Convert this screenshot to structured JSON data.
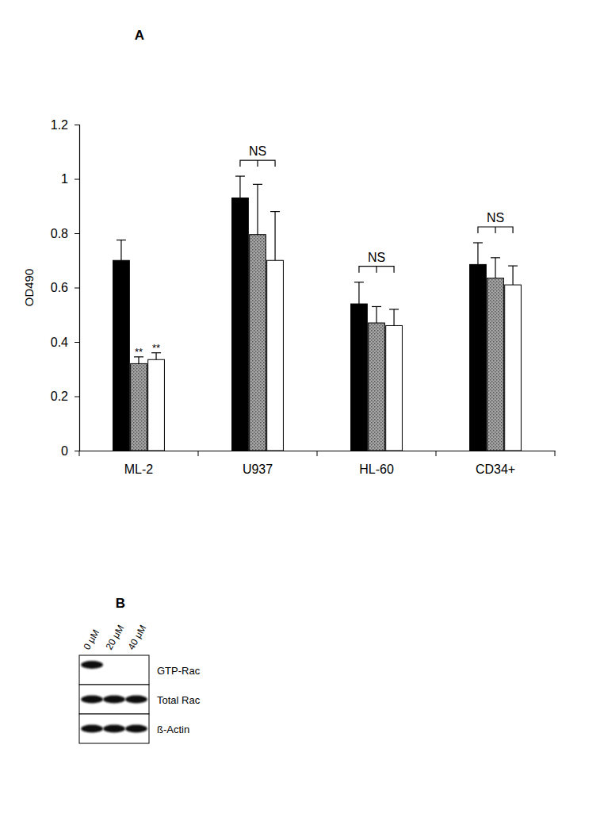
{
  "chart_data": {
    "type": "bar",
    "title": "A",
    "y_label": "OD490",
    "categories": [
      "ML-2",
      "U937",
      "HL-60",
      "CD34+"
    ],
    "series": [
      {
        "color": "#000000",
        "values": [
          0.7,
          0.93,
          0.54,
          0.685
        ],
        "errors": [
          0.075,
          0.08,
          0.08,
          0.08
        ]
      },
      {
        "color": "#a6a6a6",
        "values": [
          0.32,
          0.795,
          0.47,
          0.635
        ],
        "errors": [
          0.025,
          0.185,
          0.06,
          0.075
        ],
        "annotations": [
          "**",
          null,
          null,
          null
        ]
      },
      {
        "color": "#ffffff",
        "values": [
          0.335,
          0.7,
          0.46,
          0.61
        ],
        "errors": [
          0.025,
          0.18,
          0.06,
          0.07
        ],
        "annotations": [
          "**",
          null,
          null,
          null
        ]
      }
    ],
    "group_annotations": [
      null,
      "NS",
      "NS",
      "NS"
    ],
    "ylim": [
      0,
      1.2
    ],
    "yticks": [
      0,
      0.2,
      0.4,
      0.6,
      0.8,
      1,
      1.2
    ],
    "grid": false
  },
  "blot": {
    "title": "B",
    "lanes": [
      "0 μM",
      "20 μM",
      "40 μM"
    ],
    "rows": [
      {
        "label": "GTP-Rac",
        "bands": [
          true,
          false,
          false
        ]
      },
      {
        "label": "Total Rac",
        "bands": [
          true,
          true,
          true
        ]
      },
      {
        "label": "ß-Actin",
        "bands": [
          true,
          true,
          true
        ]
      }
    ]
  }
}
